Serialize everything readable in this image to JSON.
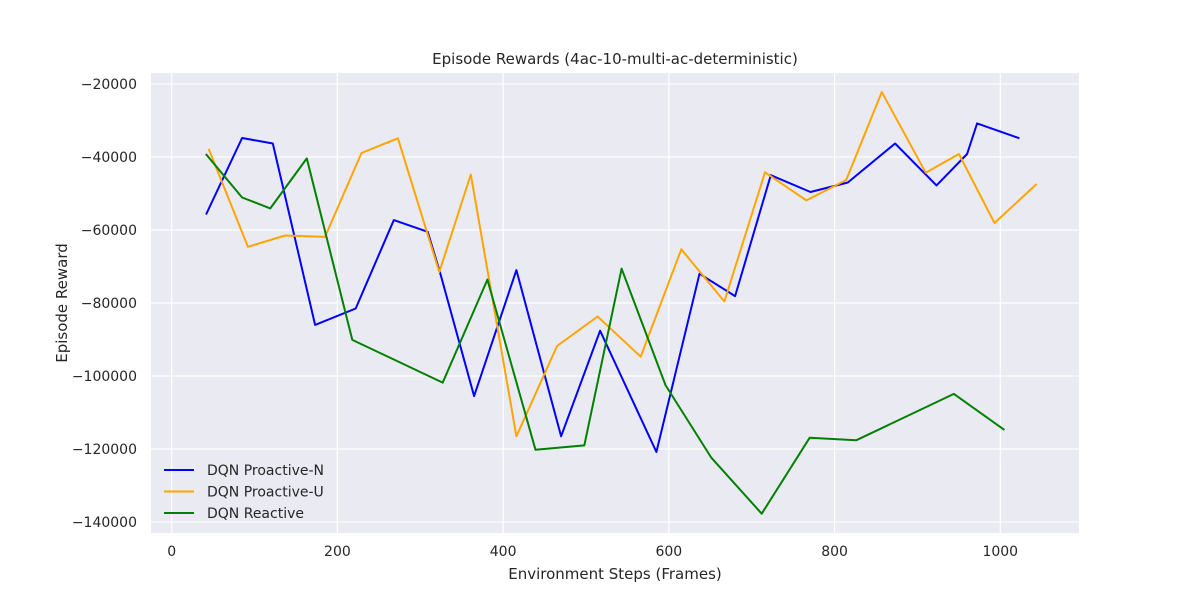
{
  "chart_data": {
    "type": "line",
    "title": "Episode Rewards (4ac-10-multi-ac-deterministic)",
    "xlabel": "Environment Steps (Frames)",
    "ylabel": "Episode Reward",
    "xlim": [
      -25,
      1095
    ],
    "ylim": [
      -143000,
      -17000
    ],
    "xticks": [
      0,
      200,
      400,
      600,
      800,
      1000
    ],
    "yticks": [
      -140000,
      -120000,
      -100000,
      -80000,
      -60000,
      -40000,
      -20000
    ],
    "xtick_labels": [
      "0",
      "200",
      "400",
      "600",
      "800",
      "1000"
    ],
    "ytick_labels": [
      "−140000",
      "−120000",
      "−100000",
      "−80000",
      "−60000",
      "−40000",
      "−20000"
    ],
    "grid": true,
    "legend_position": "bottom-left",
    "series": [
      {
        "name": "DQN Proactive-N",
        "color": "#0000ff",
        "x": [
          42,
          85,
          122,
          173,
          222,
          268,
          309,
          324,
          365,
          416,
          470,
          517,
          585,
          637,
          680,
          723,
          771,
          816,
          873,
          923,
          960,
          972,
          1022
        ],
        "y": [
          -55500,
          -34800,
          -36300,
          -86000,
          -81500,
          -57300,
          -60500,
          -71800,
          -105500,
          -71000,
          -116500,
          -87600,
          -120800,
          -72000,
          -78100,
          -45000,
          -49600,
          -47000,
          -36300,
          -47800,
          -39200,
          -30800,
          -34800
        ]
      },
      {
        "name": "DQN Proactive-U",
        "color": "#ffa500",
        "x": [
          45,
          92,
          137,
          185,
          229,
          273,
          323,
          361,
          416,
          465,
          514,
          566,
          615,
          667,
          716,
          766,
          814,
          857,
          910,
          950,
          993,
          1043
        ],
        "y": [
          -38000,
          -64600,
          -61500,
          -61900,
          -38900,
          -34900,
          -71500,
          -44800,
          -116500,
          -91800,
          -83700,
          -94700,
          -65300,
          -79600,
          -44200,
          -51900,
          -46300,
          -22200,
          -44300,
          -39200,
          -58100,
          -47600
        ]
      },
      {
        "name": "DQN Reactive",
        "color": "#008000",
        "x": [
          42,
          85,
          119,
          163,
          218,
          327,
          381,
          439,
          498,
          543,
          596,
          651,
          712,
          770,
          826,
          944,
          1004
        ],
        "y": [
          -39400,
          -51100,
          -54100,
          -40400,
          -90100,
          -101800,
          -73600,
          -120200,
          -119000,
          -70600,
          -102500,
          -122300,
          -137700,
          -116900,
          -117600,
          -104900,
          -114600
        ]
      }
    ]
  }
}
